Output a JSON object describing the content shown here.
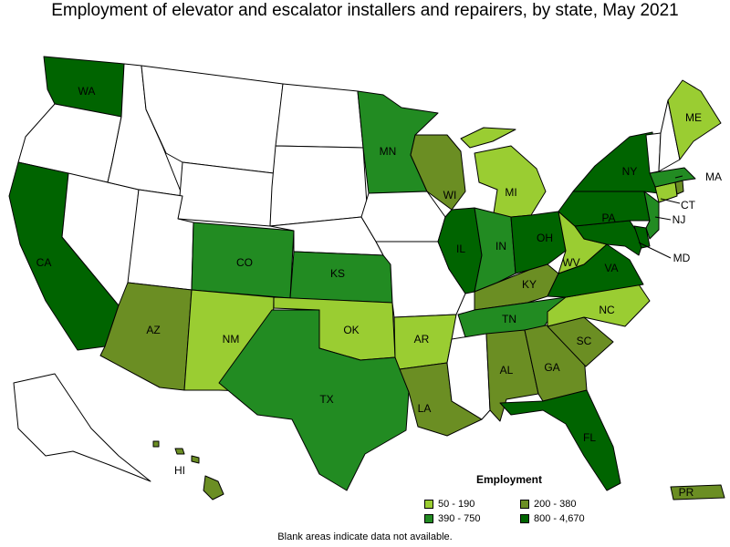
{
  "title": "Employment of elevator and escalator installers and repairers, by state, May 2021",
  "legend": {
    "title": "Employment",
    "items": [
      {
        "label": "50 - 190",
        "color": "#9acd32"
      },
      {
        "label": "200 - 380",
        "color": "#6b8e23"
      },
      {
        "label": "390 - 750",
        "color": "#228b22"
      },
      {
        "label": "800 - 4,670",
        "color": "#006400"
      }
    ]
  },
  "footnote": "Blank areas indicate data not available.",
  "colors": {
    "no_data": "#ffffff",
    "border": "#000000"
  },
  "states": [
    {
      "id": "WA",
      "label": "WA",
      "class": "800 - 4,670"
    },
    {
      "id": "OR",
      "label": "",
      "class": "none"
    },
    {
      "id": "CA",
      "label": "CA",
      "class": "800 - 4,670"
    },
    {
      "id": "NV",
      "label": "",
      "class": "none"
    },
    {
      "id": "ID",
      "label": "",
      "class": "none"
    },
    {
      "id": "MT",
      "label": "",
      "class": "none"
    },
    {
      "id": "WY",
      "label": "",
      "class": "none"
    },
    {
      "id": "UT",
      "label": "",
      "class": "none"
    },
    {
      "id": "AZ",
      "label": "AZ",
      "class": "200 - 380"
    },
    {
      "id": "CO",
      "label": "CO",
      "class": "390 - 750"
    },
    {
      "id": "NM",
      "label": "NM",
      "class": "50 - 190"
    },
    {
      "id": "ND",
      "label": "",
      "class": "none"
    },
    {
      "id": "SD",
      "label": "",
      "class": "none"
    },
    {
      "id": "NE",
      "label": "",
      "class": "none"
    },
    {
      "id": "KS",
      "label": "KS",
      "class": "390 - 750"
    },
    {
      "id": "OK",
      "label": "OK",
      "class": "50 - 190"
    },
    {
      "id": "TX",
      "label": "TX",
      "class": "390 - 750"
    },
    {
      "id": "MN",
      "label": "MN",
      "class": "390 - 750"
    },
    {
      "id": "IA",
      "label": "",
      "class": "none"
    },
    {
      "id": "MO",
      "label": "",
      "class": "none"
    },
    {
      "id": "AR",
      "label": "AR",
      "class": "50 - 190"
    },
    {
      "id": "LA",
      "label": "LA",
      "class": "200 - 380"
    },
    {
      "id": "WI",
      "label": "WI",
      "class": "200 - 380"
    },
    {
      "id": "IL",
      "label": "IL",
      "class": "800 - 4,670"
    },
    {
      "id": "MI",
      "label": "MI",
      "class": "50 - 190"
    },
    {
      "id": "IN",
      "label": "IN",
      "class": "390 - 750"
    },
    {
      "id": "OH",
      "label": "OH",
      "class": "800 - 4,670"
    },
    {
      "id": "KY",
      "label": "KY",
      "class": "200 - 380"
    },
    {
      "id": "TN",
      "label": "TN",
      "class": "390 - 750"
    },
    {
      "id": "MS",
      "label": "",
      "class": "none"
    },
    {
      "id": "AL",
      "label": "AL",
      "class": "200 - 380"
    },
    {
      "id": "GA",
      "label": "GA",
      "class": "200 - 380"
    },
    {
      "id": "FL",
      "label": "FL",
      "class": "800 - 4,670"
    },
    {
      "id": "SC",
      "label": "SC",
      "class": "200 - 380"
    },
    {
      "id": "NC",
      "label": "NC",
      "class": "50 - 190"
    },
    {
      "id": "VA",
      "label": "VA",
      "class": "800 - 4,670"
    },
    {
      "id": "WV",
      "label": "WV",
      "class": "50 - 190"
    },
    {
      "id": "MD",
      "label": "MD",
      "class": "800 - 4,670"
    },
    {
      "id": "DE",
      "label": "",
      "class": "800 - 4,670"
    },
    {
      "id": "PA",
      "label": "PA",
      "class": "800 - 4,670"
    },
    {
      "id": "NJ",
      "label": "NJ",
      "class": "390 - 750"
    },
    {
      "id": "NY",
      "label": "NY",
      "class": "800 - 4,670"
    },
    {
      "id": "CT",
      "label": "CT",
      "class": "50 - 190"
    },
    {
      "id": "RI",
      "label": "",
      "class": "200 - 380"
    },
    {
      "id": "MA",
      "label": "MA",
      "class": "390 - 750"
    },
    {
      "id": "VT",
      "label": "",
      "class": "none"
    },
    {
      "id": "NH",
      "label": "",
      "class": "none"
    },
    {
      "id": "ME",
      "label": "ME",
      "class": "50 - 190"
    },
    {
      "id": "AK",
      "label": "",
      "class": "none"
    },
    {
      "id": "HI",
      "label": "HI",
      "class": "200 - 380"
    },
    {
      "id": "PR",
      "label": "PR",
      "class": "200 - 380"
    }
  ]
}
